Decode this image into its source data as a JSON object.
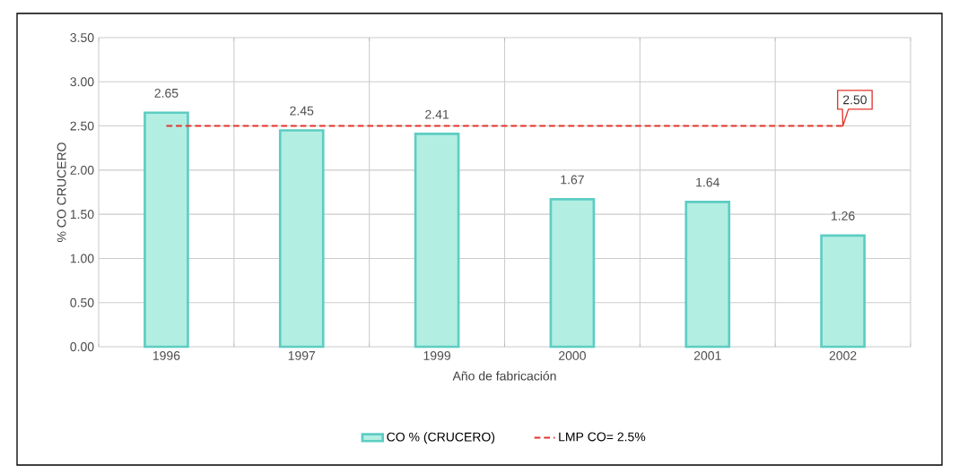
{
  "chart_data": {
    "type": "bar",
    "xlabel": "Año de fabricación",
    "ylabel": "% CO CRUCERO",
    "categories": [
      "1996",
      "1997",
      "1999",
      "2000",
      "2001",
      "2002"
    ],
    "series": [
      {
        "name": "CO % (CRUCERO)",
        "color": "#b3eee3",
        "values": [
          2.65,
          2.45,
          2.41,
          1.67,
          1.64,
          1.26
        ],
        "value_labels": [
          "2.65",
          "2.45",
          "2.41",
          "1.67",
          "1.64",
          "1.26"
        ]
      },
      {
        "name": "LMP CO= 2.5%",
        "type": "line",
        "line_style": "dashed",
        "color": "#e3342b",
        "values": [
          2.5,
          2.5,
          2.5,
          2.5,
          2.5,
          2.5
        ]
      }
    ],
    "annotations": [
      {
        "text": "2.50",
        "x": "2002",
        "y": 2.5
      }
    ],
    "ylim": [
      0,
      3.5
    ],
    "yticks": [
      {
        "value": 0,
        "label": "0.00"
      },
      {
        "value": 0.5,
        "label": "0.50"
      },
      {
        "value": 1,
        "label": "1.00"
      },
      {
        "value": 1.5,
        "label": "1.50"
      },
      {
        "value": 2,
        "label": "2.00"
      },
      {
        "value": 2.5,
        "label": "2.50"
      },
      {
        "value": 3,
        "label": "3.00"
      },
      {
        "value": 3.5,
        "label": "3.50"
      }
    ],
    "grid": true,
    "legend": "bottom"
  }
}
